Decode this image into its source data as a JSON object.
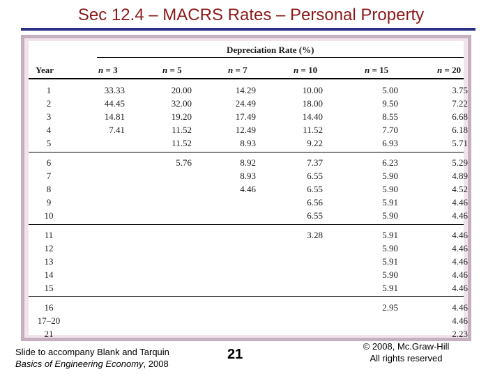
{
  "slide": {
    "title": "Sec 12.4 – MACRS Rates – Personal Property"
  },
  "table": {
    "group_header": "Depreciation Rate (%)",
    "year_header": "Year",
    "n_prefix": "n",
    "n_values": [
      "= 3",
      "= 5",
      "= 7",
      "= 10",
      "= 15",
      "= 20"
    ],
    "rows": [
      {
        "year": "1",
        "values": [
          "33.33",
          "20.00",
          "14.29",
          "10.00",
          "5.00",
          "3.75"
        ]
      },
      {
        "year": "2",
        "values": [
          "44.45",
          "32.00",
          "24.49",
          "18.00",
          "9.50",
          "7.22"
        ]
      },
      {
        "year": "3",
        "values": [
          "14.81",
          "19.20",
          "17.49",
          "14.40",
          "8.55",
          "6.68"
        ]
      },
      {
        "year": "4",
        "values": [
          "7.41",
          "11.52",
          "12.49",
          "11.52",
          "7.70",
          "6.18"
        ]
      },
      {
        "year": "5",
        "values": [
          "",
          "11.52",
          "8.93",
          "9.22",
          "6.93",
          "5.71"
        ]
      },
      {
        "year": "6",
        "values": [
          "",
          "5.76",
          "8.92",
          "7.37",
          "6.23",
          "5.29"
        ]
      },
      {
        "year": "7",
        "values": [
          "",
          "",
          "8.93",
          "6.55",
          "5.90",
          "4.89"
        ]
      },
      {
        "year": "8",
        "values": [
          "",
          "",
          "4.46",
          "6.55",
          "5.90",
          "4.52"
        ]
      },
      {
        "year": "9",
        "values": [
          "",
          "",
          "",
          "6.56",
          "5.91",
          "4.46"
        ]
      },
      {
        "year": "10",
        "values": [
          "",
          "",
          "",
          "6.55",
          "5.90",
          "4.46"
        ]
      },
      {
        "year": "11",
        "values": [
          "",
          "",
          "",
          "3.28",
          "5.91",
          "4.46"
        ]
      },
      {
        "year": "12",
        "values": [
          "",
          "",
          "",
          "",
          "5.90",
          "4.46"
        ]
      },
      {
        "year": "13",
        "values": [
          "",
          "",
          "",
          "",
          "5.91",
          "4.46"
        ]
      },
      {
        "year": "14",
        "values": [
          "",
          "",
          "",
          "",
          "5.90",
          "4.46"
        ]
      },
      {
        "year": "15",
        "values": [
          "",
          "",
          "",
          "",
          "5.91",
          "4.46"
        ]
      },
      {
        "year": "16",
        "values": [
          "",
          "",
          "",
          "",
          "2.95",
          "4.46"
        ]
      },
      {
        "year": "17–20",
        "values": [
          "",
          "",
          "",
          "",
          "",
          "4.46"
        ]
      },
      {
        "year": "21",
        "values": [
          "",
          "",
          "",
          "",
          "",
          "2.23"
        ]
      }
    ]
  },
  "footer": {
    "left_line1": "Slide to accompany Blank and Tarquin",
    "left_line2_italic": "Basics of Engineering Economy",
    "left_line2_rest": ", 2008",
    "page_number": "21",
    "right_line1": "© 2008, Mc.Graw-Hill",
    "right_line2": "All rights reserved"
  }
}
